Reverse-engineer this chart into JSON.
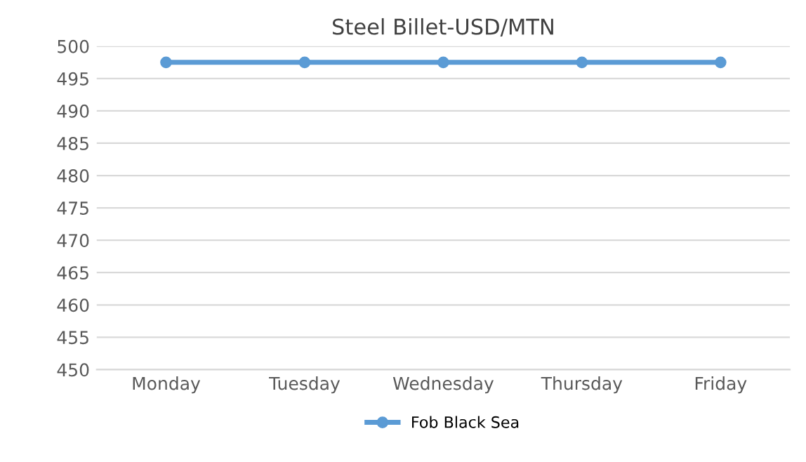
{
  "chart_data": {
    "type": "line",
    "title": "Steel Billet-USD/MTN",
    "categories": [
      "Monday",
      "Tuesday",
      "Wednesday",
      "Thursday",
      "Friday"
    ],
    "series": [
      {
        "name": "Fob Black Sea",
        "color": "#5b9bd5",
        "values": [
          497.5,
          497.5,
          497.5,
          497.5,
          497.5
        ]
      }
    ],
    "ylim": [
      450,
      500
    ],
    "yticks": [
      450,
      455,
      460,
      465,
      470,
      475,
      480,
      485,
      490,
      495,
      500
    ],
    "grid": "y",
    "legend": "bottom",
    "marker": "circle"
  }
}
